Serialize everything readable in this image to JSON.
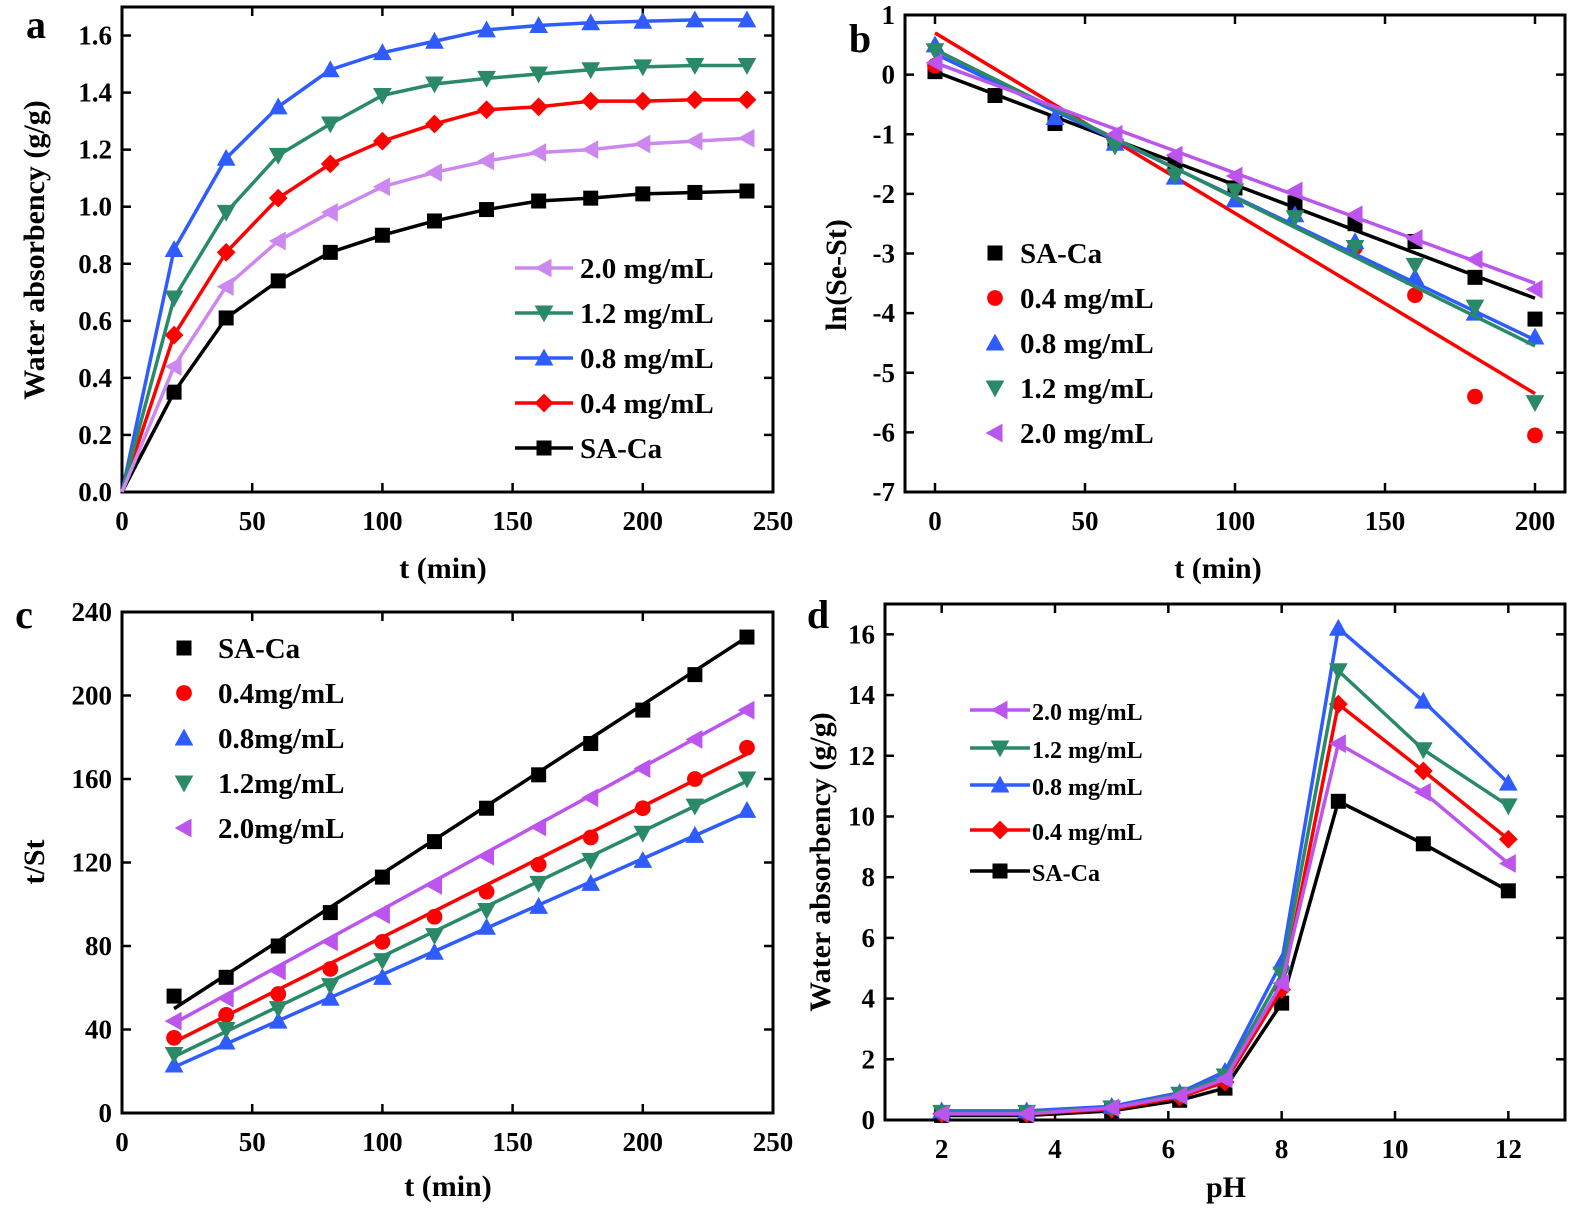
{
  "chart_data": [
    {
      "id": "a",
      "type": "line",
      "panel_label": "a",
      "xlabel": "t (min)",
      "ylabel": "Water absorbency (g/g)",
      "xlim": [
        0,
        250
      ],
      "ylim": [
        0.0,
        1.7
      ],
      "xticks": [
        "0",
        "50",
        "100",
        "150",
        "200",
        "250"
      ],
      "yticks": [
        "0.0",
        "0.2",
        "0.4",
        "0.6",
        "0.8",
        "1.0",
        "1.2",
        "1.4",
        "1.6"
      ],
      "legend_position": "bottom-right",
      "legend": [
        "2.0 mg/mL",
        "1.2 mg/mL",
        "0.8 mg/mL",
        "0.4 mg/mL",
        "SA-Ca"
      ],
      "x": [
        0,
        20,
        40,
        60,
        80,
        100,
        120,
        140,
        160,
        180,
        200,
        220,
        240
      ],
      "series": [
        {
          "name": "SA-Ca",
          "color": "#000000",
          "marker": "square",
          "values": [
            0,
            0.35,
            0.61,
            0.74,
            0.84,
            0.9,
            0.95,
            0.99,
            1.02,
            1.03,
            1.045,
            1.05,
            1.055
          ]
        },
        {
          "name": "0.4 mg/mL",
          "color": "#ff0000",
          "marker": "diamond",
          "values": [
            0,
            0.55,
            0.84,
            1.03,
            1.15,
            1.23,
            1.29,
            1.34,
            1.35,
            1.37,
            1.37,
            1.375,
            1.375
          ]
        },
        {
          "name": "0.8 mg/mL",
          "color": "#2e5cff",
          "marker": "triangle-up",
          "values": [
            0,
            0.85,
            1.17,
            1.35,
            1.48,
            1.54,
            1.58,
            1.62,
            1.635,
            1.645,
            1.65,
            1.655,
            1.655
          ]
        },
        {
          "name": "1.2 mg/mL",
          "color": "#2a8a68",
          "marker": "triangle-down",
          "values": [
            0,
            0.68,
            0.98,
            1.18,
            1.29,
            1.39,
            1.43,
            1.45,
            1.465,
            1.48,
            1.49,
            1.495,
            1.495
          ]
        },
        {
          "name": "2.0 mg/mL",
          "color": "#cc88ee",
          "marker": "triangle-left",
          "values": [
            0,
            0.44,
            0.72,
            0.88,
            0.98,
            1.07,
            1.12,
            1.16,
            1.19,
            1.2,
            1.22,
            1.23,
            1.24
          ]
        }
      ]
    },
    {
      "id": "b",
      "type": "scatter",
      "panel_label": "b",
      "xlabel": "t (min)",
      "ylabel": "ln(Se-St)",
      "xlim": [
        -10,
        210
      ],
      "ylim": [
        -7,
        1
      ],
      "xticks": [
        "0",
        "50",
        "100",
        "150",
        "200"
      ],
      "yticks": [
        "-7",
        "-6",
        "-5",
        "-4",
        "-3",
        "-2",
        "-1",
        "0",
        "1"
      ],
      "legend_position": "middle-left",
      "legend": [
        "SA-Ca",
        "0.4 mg/mL",
        "0.8 mg/mL",
        "1.2 mg/mL",
        "2.0 mg/mL"
      ],
      "x": [
        0,
        20,
        40,
        60,
        80,
        100,
        120,
        140,
        160,
        180,
        200
      ],
      "series": [
        {
          "name": "SA-Ca",
          "color": "#000000",
          "marker": "square",
          "values": [
            0.05,
            -0.35,
            -0.82,
            -1.12,
            -1.5,
            -1.9,
            -2.15,
            -2.5,
            -2.8,
            -3.4,
            -4.1
          ],
          "fit": [
            0.05,
            -3.75
          ]
        },
        {
          "name": "0.4 mg/mL",
          "color": "#ff0000",
          "marker": "circle",
          "values": [
            0.15,
            null,
            null,
            null,
            null,
            null,
            null,
            -2.9,
            -3.7,
            -5.4,
            -6.05
          ],
          "fit": [
            0.7,
            -5.35
          ]
        },
        {
          "name": "0.8 mg/mL",
          "color": "#2e5cff",
          "marker": "triangle-up",
          "values": [
            0.5,
            null,
            -0.72,
            -1.15,
            -1.72,
            -2.1,
            -2.35,
            -2.8,
            -3.4,
            -4.0,
            -4.4
          ],
          "fit": [
            0.35,
            -4.45
          ]
        },
        {
          "name": "1.2 mg/mL",
          "color": "#2a8a68",
          "marker": "triangle-down",
          "values": [
            0.4,
            null,
            null,
            -1.2,
            -1.7,
            -1.95,
            -2.4,
            -2.9,
            -3.2,
            -3.9,
            -5.5
          ],
          "fit": [
            0.42,
            -4.55
          ]
        },
        {
          "name": "2.0 mg/mL",
          "color": "#bb55ee",
          "marker": "triangle-left",
          "values": [
            0.2,
            null,
            null,
            -1.0,
            -1.35,
            -1.7,
            -1.95,
            -2.35,
            -2.75,
            -3.1,
            -3.6
          ],
          "fit": [
            0.2,
            -3.5
          ]
        }
      ]
    },
    {
      "id": "c",
      "type": "scatter",
      "panel_label": "c",
      "xlabel": "t (min)",
      "ylabel": "t/St",
      "xlim": [
        0,
        250
      ],
      "ylim": [
        0,
        240
      ],
      "xticks": [
        "0",
        "50",
        "100",
        "150",
        "200",
        "250"
      ],
      "yticks": [
        "0",
        "40",
        "80",
        "120",
        "160",
        "200",
        "240"
      ],
      "legend_position": "top-left",
      "legend": [
        "SA-Ca",
        "0.4mg/mL",
        "0.8mg/mL",
        "1.2mg/mL",
        "2.0mg/mL"
      ],
      "x": [
        20,
        40,
        60,
        80,
        100,
        120,
        140,
        160,
        180,
        200,
        220,
        240
      ],
      "series": [
        {
          "name": "SA-Ca",
          "color": "#000000",
          "marker": "square",
          "values": [
            56,
            65,
            80,
            96,
            113,
            130,
            146,
            162,
            177,
            193,
            210,
            228
          ],
          "fit": [
            50,
            228
          ]
        },
        {
          "name": "0.4mg/mL",
          "color": "#ff0000",
          "marker": "circle",
          "values": [
            36,
            47,
            57,
            69,
            82,
            94,
            106,
            119,
            132,
            146,
            160,
            175
          ],
          "fit": [
            34,
            172
          ]
        },
        {
          "name": "0.8mg/mL",
          "color": "#2e5cff",
          "marker": "triangle-up",
          "values": [
            23,
            34,
            44,
            55,
            65,
            77,
            89,
            99,
            110,
            121,
            133,
            145
          ],
          "fit": [
            22,
            144
          ]
        },
        {
          "name": "1.2mg/mL",
          "color": "#2a8a68",
          "marker": "triangle-down",
          "values": [
            28,
            40,
            50,
            61,
            73,
            85,
            97,
            110,
            121,
            134,
            147,
            160
          ],
          "fit": [
            27,
            159
          ]
        },
        {
          "name": "2.0mg/mL",
          "color": "#bb55ee",
          "marker": "triangle-left",
          "values": [
            44,
            55,
            68,
            82,
            95,
            109,
            123,
            137,
            151,
            165,
            179,
            193
          ],
          "fit": [
            43,
            193
          ]
        }
      ]
    },
    {
      "id": "d",
      "type": "line",
      "panel_label": "d",
      "xlabel": "pH",
      "ylabel": "Water absorbency (g/g)",
      "xlim": [
        1,
        13
      ],
      "ylim": [
        0,
        17
      ],
      "xticks": [
        "2",
        "4",
        "6",
        "8",
        "10",
        "12"
      ],
      "yticks": [
        "0",
        "2",
        "4",
        "6",
        "8",
        "10",
        "12",
        "14",
        "16"
      ],
      "legend_position": "middle-left",
      "legend": [
        "2.0 mg/mL",
        "1.2 mg/mL",
        "0.8 mg/mL",
        "0.4 mg/mL",
        "SA-Ca"
      ],
      "x": [
        2,
        3.5,
        5,
        6.2,
        7,
        8,
        9,
        10.5,
        12
      ],
      "series": [
        {
          "name": "SA-Ca",
          "color": "#000000",
          "marker": "square",
          "values": [
            0.15,
            0.15,
            0.3,
            0.65,
            1.05,
            3.85,
            10.5,
            9.1,
            7.55
          ]
        },
        {
          "name": "0.4 mg/mL",
          "color": "#ff0000",
          "marker": "diamond",
          "values": [
            0.2,
            0.2,
            0.35,
            0.75,
            1.25,
            4.3,
            13.7,
            11.5,
            9.25
          ]
        },
        {
          "name": "0.8 mg/mL",
          "color": "#2e5cff",
          "marker": "triangle-up",
          "values": [
            0.3,
            0.3,
            0.45,
            0.9,
            1.6,
            5.2,
            16.2,
            13.8,
            11.1
          ]
        },
        {
          "name": "1.2 mg/mL",
          "color": "#2a8a68",
          "marker": "triangle-down",
          "values": [
            0.25,
            0.25,
            0.4,
            0.85,
            1.45,
            4.8,
            14.8,
            12.2,
            10.35
          ]
        },
        {
          "name": "2.0 mg/mL",
          "color": "#bb55ee",
          "marker": "triangle-left",
          "values": [
            0.2,
            0.2,
            0.4,
            0.8,
            1.35,
            4.5,
            12.4,
            10.8,
            8.45
          ]
        }
      ]
    }
  ]
}
